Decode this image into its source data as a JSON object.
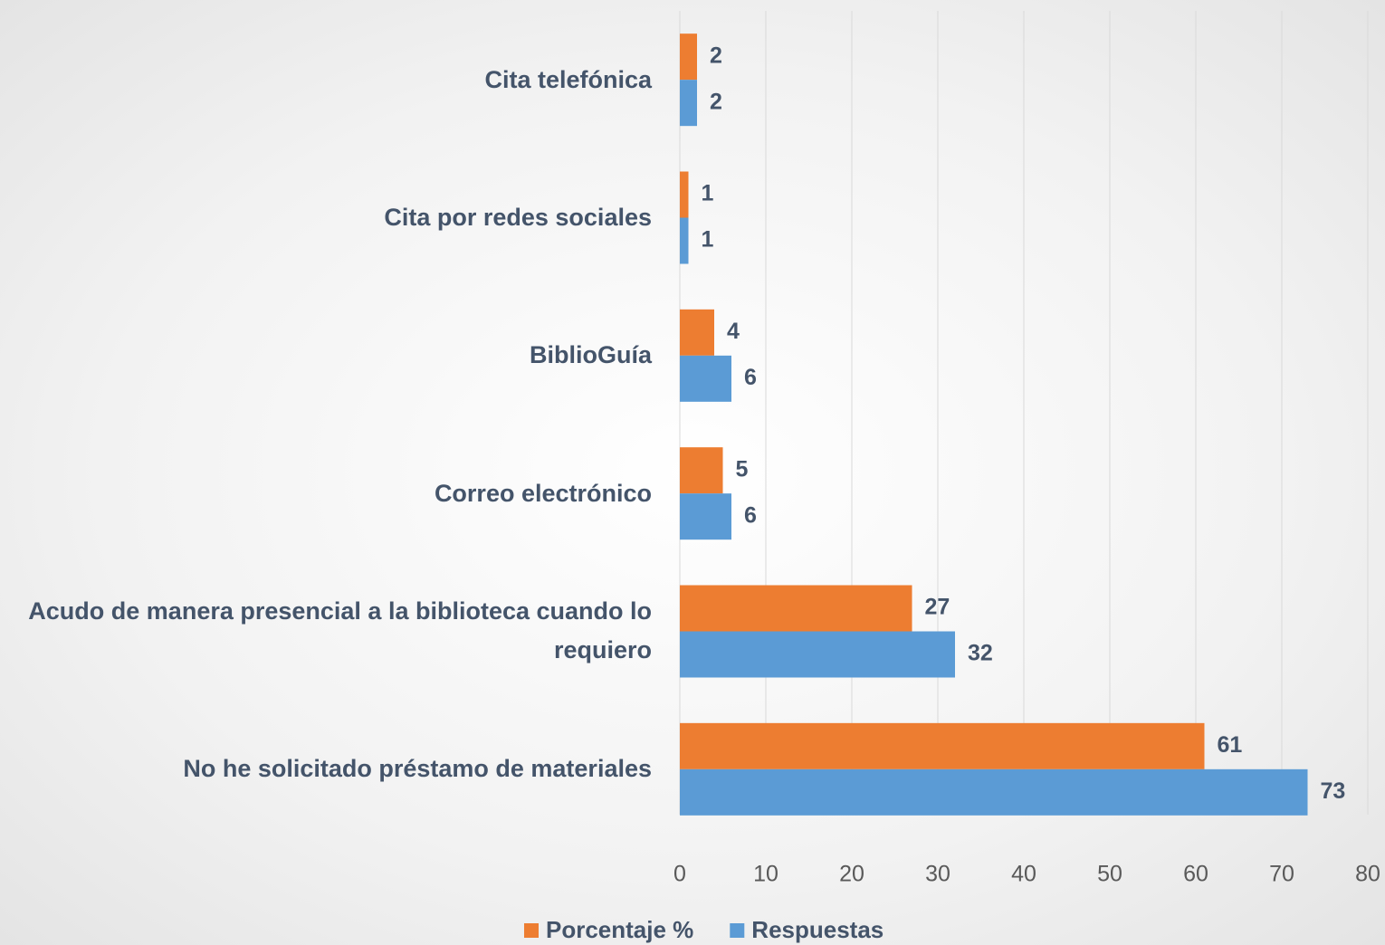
{
  "chart_data": {
    "type": "barh",
    "categories": [
      "Cita telefónica",
      "Cita por redes sociales",
      "BiblioGuía",
      "Correo electrónico",
      "Acudo de manera presencial a la biblioteca cuando lo requiero",
      "No he solicitado préstamo de materiales"
    ],
    "series": [
      {
        "name": "Porcentaje %",
        "color": "#ed7d31",
        "values": [
          2,
          1,
          4,
          5,
          27,
          61
        ]
      },
      {
        "name": "Respuestas",
        "color": "#5b9bd5",
        "values": [
          2,
          1,
          6,
          6,
          32,
          73
        ]
      }
    ],
    "xlim": [
      0,
      80
    ],
    "xticks": [
      0,
      10,
      20,
      30,
      40,
      50,
      60,
      70,
      80
    ],
    "grid": true,
    "legend": "bottom"
  }
}
